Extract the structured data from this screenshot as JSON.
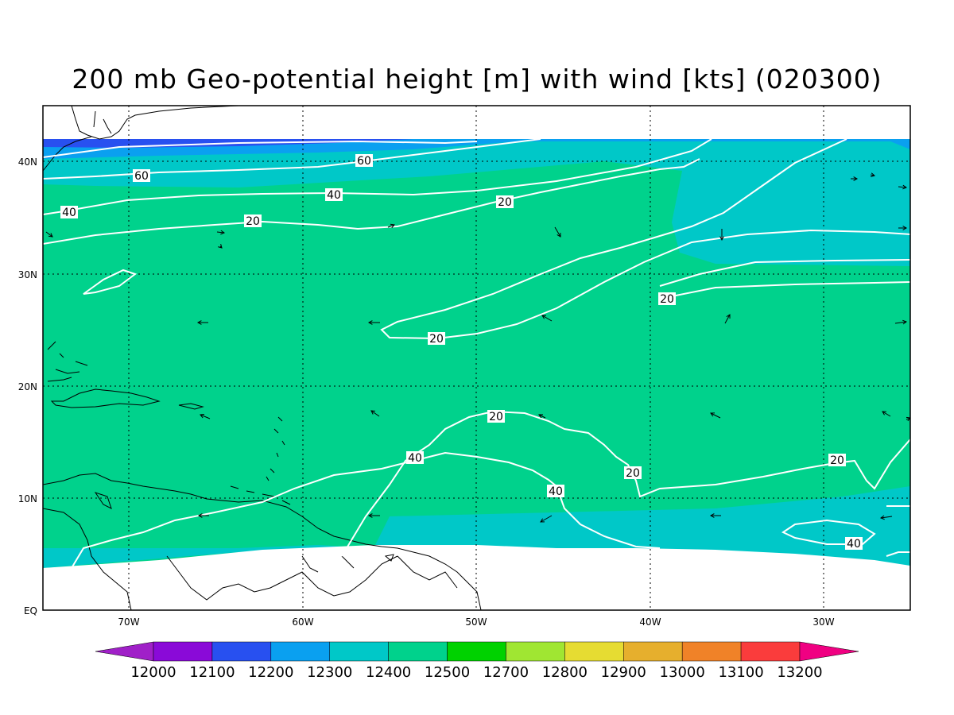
{
  "title": "200 mb Geo-potential height [m] with wind [kts] (020300)",
  "lon_ticks": [
    "70W",
    "60W",
    "50W",
    "40W",
    "30W"
  ],
  "lat_ticks": [
    "EQ",
    "10N",
    "20N",
    "30N",
    "40N"
  ],
  "colorbar": {
    "labels": [
      "12000",
      "12100",
      "12200",
      "12300",
      "12400",
      "12500",
      "12700",
      "12800",
      "12900",
      "13000",
      "13100",
      "13200"
    ],
    "colors": [
      "#a020c8",
      "#8a0ad8",
      "#2850f0",
      "#0aa0f0",
      "#00c8c8",
      "#00d28c",
      "#00d200",
      "#a0e632",
      "#e6dc32",
      "#e6af2d",
      "#f08228",
      "#fa3c3c",
      "#f00082"
    ]
  },
  "field_colors": {
    "band_12200": "#2850f0",
    "band_12300": "#0aa0f0",
    "band_12400": "#00c8c8",
    "band_12500": "#00d28c",
    "isotach": "#ffffff",
    "coast": "#000000"
  },
  "isotach_labels": [
    "60",
    "60",
    "40",
    "40",
    "20",
    "20",
    "20",
    "20",
    "20",
    "20",
    "20",
    "40",
    "40",
    "40"
  ],
  "wind_arrow_count": 26
}
